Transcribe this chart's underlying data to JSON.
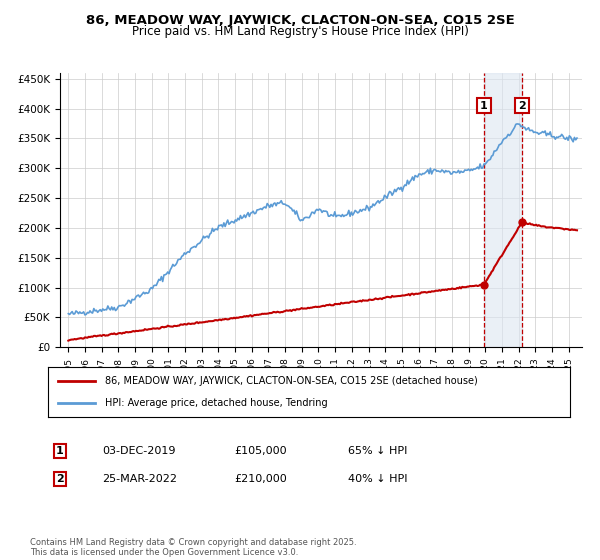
{
  "title": "86, MEADOW WAY, JAYWICK, CLACTON-ON-SEA, CO15 2SE",
  "subtitle": "Price paid vs. HM Land Registry's House Price Index (HPI)",
  "legend_line1": "86, MEADOW WAY, JAYWICK, CLACTON-ON-SEA, CO15 2SE (detached house)",
  "legend_line2": "HPI: Average price, detached house, Tendring",
  "footnote": "Contains HM Land Registry data © Crown copyright and database right 2025.\nThis data is licensed under the Open Government Licence v3.0.",
  "annotation1_date": "03-DEC-2019",
  "annotation1_price": "£105,000",
  "annotation1_hpi": "65% ↓ HPI",
  "annotation2_date": "25-MAR-2022",
  "annotation2_price": "£210,000",
  "annotation2_hpi": "40% ↓ HPI",
  "hpi_color": "#5b9bd5",
  "price_color": "#c00000",
  "shade_color": "#dce6f1",
  "ylim": [
    0,
    460000
  ],
  "yticks": [
    0,
    50000,
    100000,
    150000,
    200000,
    250000,
    300000,
    350000,
    400000,
    450000
  ],
  "xlim_start": 1994.5,
  "xlim_end": 2025.8,
  "purchase1_x": 2019.917,
  "purchase2_x": 2022.208,
  "purchase1_y": 105000,
  "purchase2_y": 210000
}
